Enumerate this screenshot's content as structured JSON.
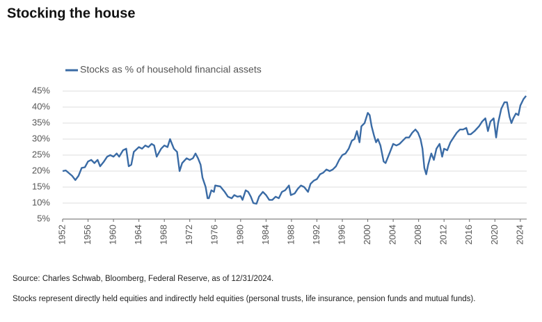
{
  "chart_data": {
    "type": "line",
    "title": "Stocking the house",
    "source": "Source: Charles Schwab, Bloomberg, Federal Reserve, as of 12/31/2024.",
    "note": "Stocks represent directly held equities and indirectly held equities (personal trusts, life insurance, pension funds and mutual funds).",
    "x": [
      1952,
      1952.5,
      1953.5,
      1954,
      1954.5,
      1955,
      1955.5,
      1956,
      1956.5,
      1957,
      1957.5,
      1957.9,
      1958.5,
      1959,
      1959.5,
      1960,
      1960.5,
      1960.9,
      1961.5,
      1962,
      1962.4,
      1962.8,
      1963.2,
      1964,
      1964.5,
      1965,
      1965.5,
      1966,
      1966.4,
      1966.8,
      1967.5,
      1968,
      1968.5,
      1968.9,
      1969.5,
      1970,
      1970.4,
      1970.8,
      1971.5,
      1972,
      1972.5,
      1972.9,
      1973.3,
      1973.7,
      1974,
      1974.5,
      1974.8,
      1975,
      1975.4,
      1975.8,
      1976,
      1976.8,
      1977.5,
      1978,
      1978.6,
      1979,
      1979.5,
      1980,
      1980.3,
      1980.8,
      1981.2,
      1981.6,
      1982,
      1982.5,
      1982.9,
      1983.5,
      1984,
      1984.5,
      1985,
      1985.5,
      1986,
      1986.5,
      1987,
      1987.6,
      1987.9,
      1988.5,
      1989,
      1989.5,
      1990,
      1990.6,
      1991,
      1991.5,
      1992,
      1992.5,
      1993,
      1993.5,
      1994,
      1994.5,
      1995,
      1995.5,
      1996,
      1996.5,
      1997,
      1997.5,
      1997.9,
      1998.3,
      1998.7,
      1999,
      1999.5,
      2000,
      2000.3,
      2000.6,
      2001,
      2001.3,
      2001.6,
      2002,
      2002.5,
      2002.8,
      2003,
      2003.5,
      2004,
      2004.5,
      2005,
      2005.5,
      2006,
      2006.5,
      2007,
      2007.5,
      2007.9,
      2008.3,
      2008.6,
      2008.9,
      2009.2,
      2009.5,
      2010,
      2010.4,
      2010.8,
      2011.3,
      2011.7,
      2012,
      2012.5,
      2013,
      2013.5,
      2014,
      2014.5,
      2015,
      2015.5,
      2015.8,
      2016.2,
      2016.8,
      2017.5,
      2018,
      2018.5,
      2018.9,
      2019.3,
      2019.8,
      2020.2,
      2020.5,
      2021,
      2021.5,
      2021.9,
      2022.3,
      2022.6,
      2022.9,
      2023.3,
      2023.7,
      2024,
      2024.5,
      2024.9
    ],
    "series": [
      {
        "name": "Stocks as % of household financial assets",
        "color": "#3a6ba5",
        "values": [
          20,
          20.2,
          18.5,
          17.2,
          18.5,
          21,
          21.2,
          23,
          23.5,
          22.5,
          23.5,
          21.5,
          23,
          24.5,
          25,
          24.5,
          25.5,
          24.5,
          26.5,
          27,
          21.5,
          22,
          26,
          27.5,
          27,
          28,
          27.5,
          28.5,
          28,
          24.5,
          27,
          28,
          27.5,
          30,
          27,
          26,
          20,
          22.5,
          24,
          23.5,
          24,
          25.5,
          24,
          22,
          18,
          15,
          11.5,
          11.5,
          14,
          13.5,
          15.5,
          15.2,
          13.5,
          12,
          11.5,
          12.5,
          12,
          12.2,
          11,
          14,
          13.5,
          12,
          10,
          9.8,
          12,
          13.5,
          12.5,
          11,
          11,
          12,
          11.5,
          13.5,
          14,
          15.5,
          12.5,
          13,
          14.5,
          15.5,
          15,
          13.5,
          16,
          17,
          17.5,
          19,
          19.5,
          20.5,
          20,
          20.5,
          21.5,
          23.5,
          25,
          25.5,
          27,
          29.5,
          30,
          32.5,
          29,
          34,
          35,
          38.2,
          37.5,
          34,
          31,
          29,
          30,
          28,
          23,
          22.5,
          23.5,
          26,
          28.5,
          28,
          28.5,
          29.5,
          30.5,
          30.5,
          32,
          33,
          32,
          30,
          27,
          21,
          19,
          22,
          25.5,
          23.5,
          27,
          28.5,
          24.5,
          27,
          26.5,
          29,
          30.5,
          32,
          33,
          33,
          33.5,
          31.5,
          31.5,
          32.5,
          34,
          35.5,
          36.5,
          32.5,
          35.5,
          36.5,
          30.5,
          35,
          39.5,
          41.5,
          41.5,
          37,
          35,
          36.5,
          38,
          37.5,
          40.5,
          42.5,
          43.5
        ]
      }
    ],
    "xlim": [
      1952,
      2025
    ],
    "xticks": [
      1952,
      1956,
      1960,
      1964,
      1968,
      1972,
      1976,
      1980,
      1984,
      1988,
      1992,
      1996,
      2000,
      2004,
      2008,
      2012,
      2016,
      2020,
      2024
    ],
    "ylim": [
      5,
      45
    ],
    "yticks": [
      {
        "value": 5,
        "label": "5%"
      },
      {
        "value": 10,
        "label": "10%"
      },
      {
        "value": 15,
        "label": "15%"
      },
      {
        "value": 20,
        "label": "20%"
      },
      {
        "value": 25,
        "label": "25%"
      },
      {
        "value": 30,
        "label": "30%"
      },
      {
        "value": 35,
        "label": "35%"
      },
      {
        "value": 40,
        "label": "40%"
      },
      {
        "value": 45,
        "label": "45%"
      }
    ],
    "grid": true,
    "legend": "top-left"
  }
}
